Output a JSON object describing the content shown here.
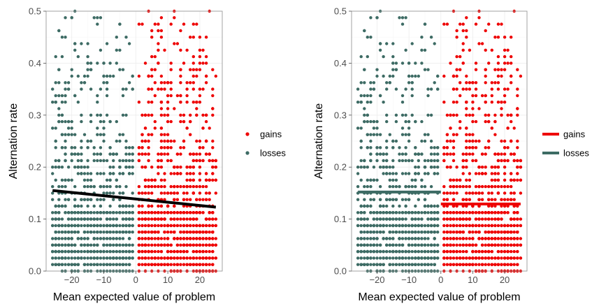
{
  "chart_data": [
    {
      "type": "scatter",
      "xlabel": "Mean expected value of problem",
      "ylabel": "Alternation rate",
      "xlim": [
        -28,
        27
      ],
      "ylim": [
        0,
        0.5
      ],
      "x_ticks": [
        -20,
        -10,
        0,
        10,
        20
      ],
      "y_ticks": [
        0.0,
        0.1,
        0.2,
        0.3,
        0.4,
        0.5
      ],
      "x_tick_labels": [
        "−20",
        "−10",
        "0",
        "10",
        "20"
      ],
      "y_tick_labels": [
        "0.0",
        "0.1",
        "0.2",
        "0.3",
        "0.4",
        "0.5"
      ],
      "grid": true,
      "legend": {
        "position": "right",
        "entries": [
          "gains",
          "losses"
        ],
        "key": "point"
      },
      "series": [
        {
          "name": "gains",
          "color": "#ee0000",
          "x_range": [
            0.5,
            25
          ],
          "density": "heavy near y=0.0–0.12, sparse above 0.2"
        },
        {
          "name": "losses",
          "color": "#3d6b64",
          "x_range": [
            -26,
            -0.5
          ],
          "density": "heavy near y=0.0–0.15, sparse above 0.2"
        }
      ],
      "fit_lines": [
        {
          "group": "all",
          "color": "#000000",
          "x": [
            -26,
            25
          ],
          "y": [
            0.155,
            0.123
          ]
        }
      ]
    },
    {
      "type": "scatter",
      "xlabel": "Mean expected value of problem",
      "ylabel": "Alternation rate",
      "xlim": [
        -28,
        27
      ],
      "ylim": [
        0,
        0.5
      ],
      "x_ticks": [
        -20,
        -10,
        0,
        10,
        20
      ],
      "y_ticks": [
        0.0,
        0.1,
        0.2,
        0.3,
        0.4,
        0.5
      ],
      "x_tick_labels": [
        "−20",
        "−10",
        "0",
        "10",
        "20"
      ],
      "y_tick_labels": [
        "0.0",
        "0.1",
        "0.2",
        "0.3",
        "0.4",
        "0.5"
      ],
      "grid": true,
      "legend": {
        "position": "right",
        "entries": [
          "gains",
          "losses"
        ],
        "key": "line"
      },
      "series": [
        {
          "name": "gains",
          "color": "#ee0000",
          "x_range": [
            0.5,
            25
          ],
          "density": "heavy near y=0.0–0.12, sparse above 0.2"
        },
        {
          "name": "losses",
          "color": "#3d6b64",
          "x_range": [
            -26,
            -0.5
          ],
          "density": "heavy near y=0.0–0.15, sparse above 0.2"
        }
      ],
      "fit_lines": [
        {
          "group": "losses",
          "color": "#3d6b64",
          "x": [
            -26,
            0
          ],
          "y": [
            0.152,
            0.152
          ]
        },
        {
          "group": "gains",
          "color": "#ee0000",
          "x": [
            0,
            25
          ],
          "y": [
            0.129,
            0.129
          ]
        }
      ]
    }
  ]
}
